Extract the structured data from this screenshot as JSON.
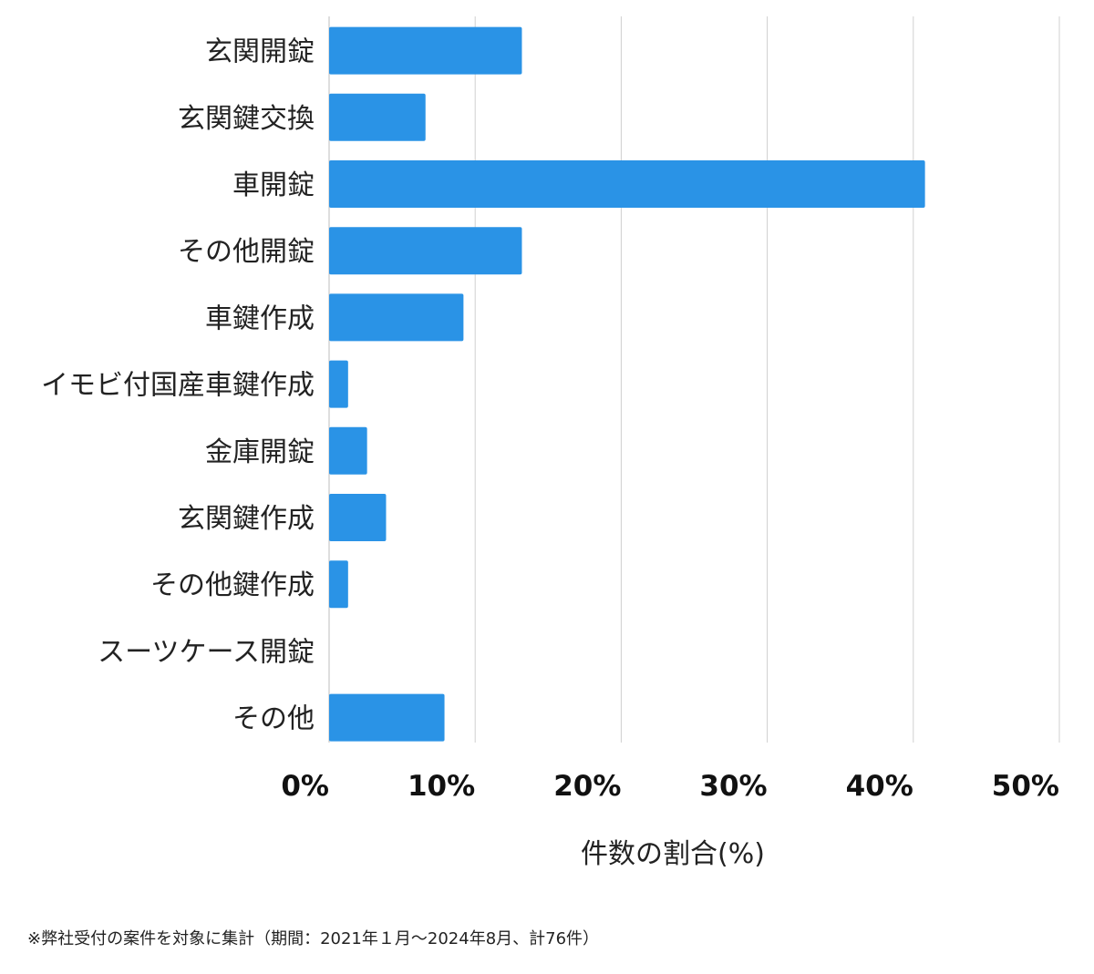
{
  "chart_data": {
    "type": "bar",
    "orientation": "horizontal",
    "categories": [
      "玄関開錠",
      "玄関鍵交換",
      "車開錠",
      "その他開錠",
      "車鍵作成",
      "イモビ付国産車鍵作成",
      "金庫開錠",
      "玄関鍵作成",
      "その他鍵作成",
      "スーツケース開錠",
      "その他"
    ],
    "values": [
      13.2,
      6.6,
      40.8,
      13.2,
      9.2,
      1.3,
      2.6,
      3.9,
      1.3,
      0,
      7.9
    ],
    "xlabel": "件数の割合(%)",
    "xlim": [
      0,
      50
    ],
    "xticks": [
      "0%",
      "10%",
      "20%",
      "30%",
      "40%",
      "50%"
    ],
    "grid": "vertical",
    "bar_color": "#2a93e6",
    "grid_color": "#d0d0d0"
  },
  "footnote": "※弊社受付の案件を対象に集計（期間：2021年１月～2024年8月、計76件）"
}
